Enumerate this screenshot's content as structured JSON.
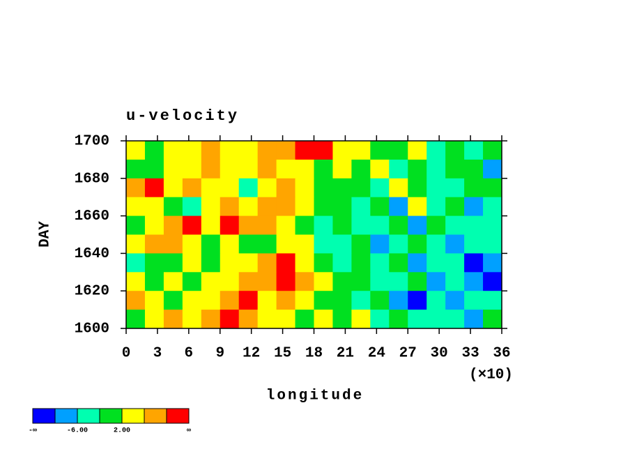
{
  "chart_data": {
    "type": "contour",
    "title": "u-velocity",
    "x_label": "longitude",
    "y_label": "DAY",
    "x_multiplier_label": "(×10)",
    "xlim": [
      0,
      36
    ],
    "xticks": [
      0,
      3,
      6,
      9,
      12,
      15,
      18,
      21,
      24,
      27,
      30,
      33,
      36
    ],
    "ylim": [
      1600,
      1700
    ],
    "yticks": [
      1600,
      1620,
      1640,
      1660,
      1680,
      1700
    ],
    "z": [
      [
        3,
        1,
        4,
        2,
        6,
        3,
        5,
        8,
        7,
        11,
        12,
        5,
        2,
        0,
        -1,
        2,
        -3,
        1,
        -4,
        -2
      ],
      [
        1,
        -2,
        3,
        5,
        7,
        4,
        2,
        6,
        5,
        3,
        1,
        4,
        -1,
        2,
        -3,
        0,
        -5,
        -2,
        1,
        -7
      ],
      [
        8,
        12,
        5,
        9,
        3,
        2,
        -3,
        4,
        6,
        2,
        0,
        -2,
        1,
        -4,
        3,
        -1,
        -6,
        -3,
        -2,
        0
      ],
      [
        2,
        4,
        1,
        -3,
        5,
        8,
        3,
        9,
        7,
        4,
        -2,
        1,
        -5,
        -2,
        -7,
        2,
        -4,
        -1,
        -8,
        -3
      ],
      [
        -2,
        3,
        7,
        11,
        5,
        12,
        9,
        8,
        3,
        -1,
        -4,
        0,
        -6,
        -3,
        1,
        -8,
        -2,
        -5,
        -3,
        -6
      ],
      [
        4,
        9,
        6,
        2,
        -1,
        3,
        1,
        -2,
        4,
        2,
        -3,
        -5,
        -2,
        -7,
        -4,
        -1,
        -6,
        -9,
        -3,
        -4
      ],
      [
        -5,
        1,
        -2,
        3,
        0,
        5,
        2,
        6,
        11,
        4,
        1,
        -3,
        -1,
        -6,
        -2,
        -8,
        -4,
        -3,
        -11,
        -7
      ],
      [
        2,
        -1,
        4,
        1,
        5,
        3,
        9,
        7,
        10,
        8,
        3,
        -2,
        0,
        -4,
        -6,
        -1,
        -9,
        -5,
        -8,
        -12
      ],
      [
        6,
        3,
        -1,
        5,
        2,
        8,
        11,
        4,
        9,
        2,
        -1,
        1,
        -3,
        -2,
        -8,
        -11,
        -4,
        -7,
        -3,
        -5
      ],
      [
        1,
        4,
        7,
        2,
        9,
        12,
        6,
        3,
        5,
        1,
        4,
        -2,
        2,
        -4,
        -1,
        -6,
        -3,
        -5,
        -10,
        -2
      ]
    ],
    "colorbar": {
      "colors": [
        "#0000ff",
        "#00a0ff",
        "#00ffb0",
        "#00e020",
        "#ffff00",
        "#ffa500",
        "#ff0000"
      ],
      "levels": [
        -10,
        -6,
        -2,
        2,
        6,
        10
      ],
      "ticks": [
        {
          "value": -6,
          "label": "-6.00"
        },
        {
          "value": 2,
          "label": "2.00"
        }
      ],
      "min_label": "-∞",
      "max_label": "∞"
    }
  }
}
